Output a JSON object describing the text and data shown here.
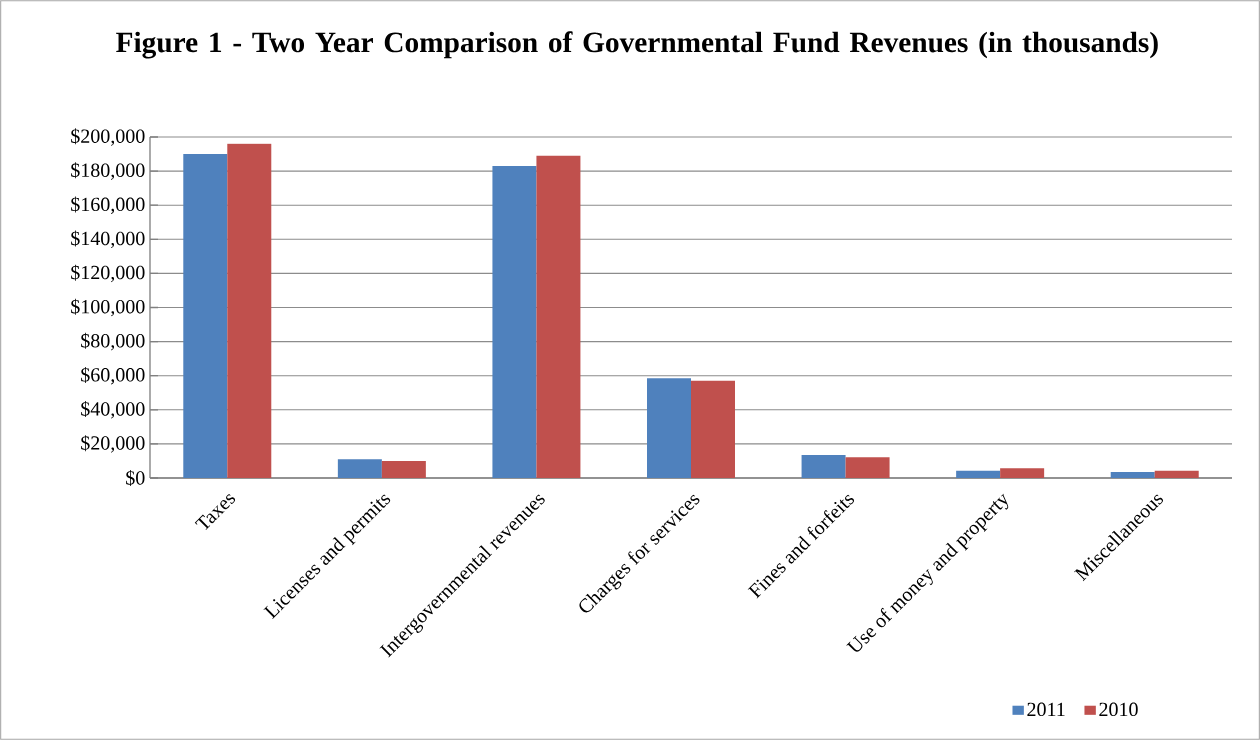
{
  "chart_data": {
    "type": "bar",
    "title": "Figure 1 - Two Year Comparison of Governmental Fund Revenues (in thousands)",
    "categories": [
      "Taxes",
      "Licenses and permits",
      "Intergovernmental revenues",
      "Charges for services",
      "Fines and forfeits",
      "Use of money and property",
      "Miscellaneous"
    ],
    "series": [
      {
        "name": "2011",
        "color": "#4f81bd",
        "values": [
          190000,
          11000,
          183000,
          58500,
          13500,
          4200,
          3500
        ]
      },
      {
        "name": "2010",
        "color": "#c0504d",
        "values": [
          196000,
          10000,
          189000,
          57000,
          12200,
          5700,
          4200
        ]
      }
    ],
    "ylim": [
      0,
      200000
    ],
    "yticks": [
      {
        "value": 0,
        "label": "$0"
      },
      {
        "value": 20000,
        "label": "$20,000"
      },
      {
        "value": 40000,
        "label": "$40,000"
      },
      {
        "value": 60000,
        "label": "$60,000"
      },
      {
        "value": 80000,
        "label": "$80,000"
      },
      {
        "value": 100000,
        "label": "$100,000"
      },
      {
        "value": 120000,
        "label": "$120,000"
      },
      {
        "value": 140000,
        "label": "$140,000"
      },
      {
        "value": 160000,
        "label": "$160,000"
      },
      {
        "value": 180000,
        "label": "$180,000"
      },
      {
        "value": 200000,
        "label": "$200,000"
      }
    ],
    "grid": "y",
    "legend": "bottom right"
  }
}
